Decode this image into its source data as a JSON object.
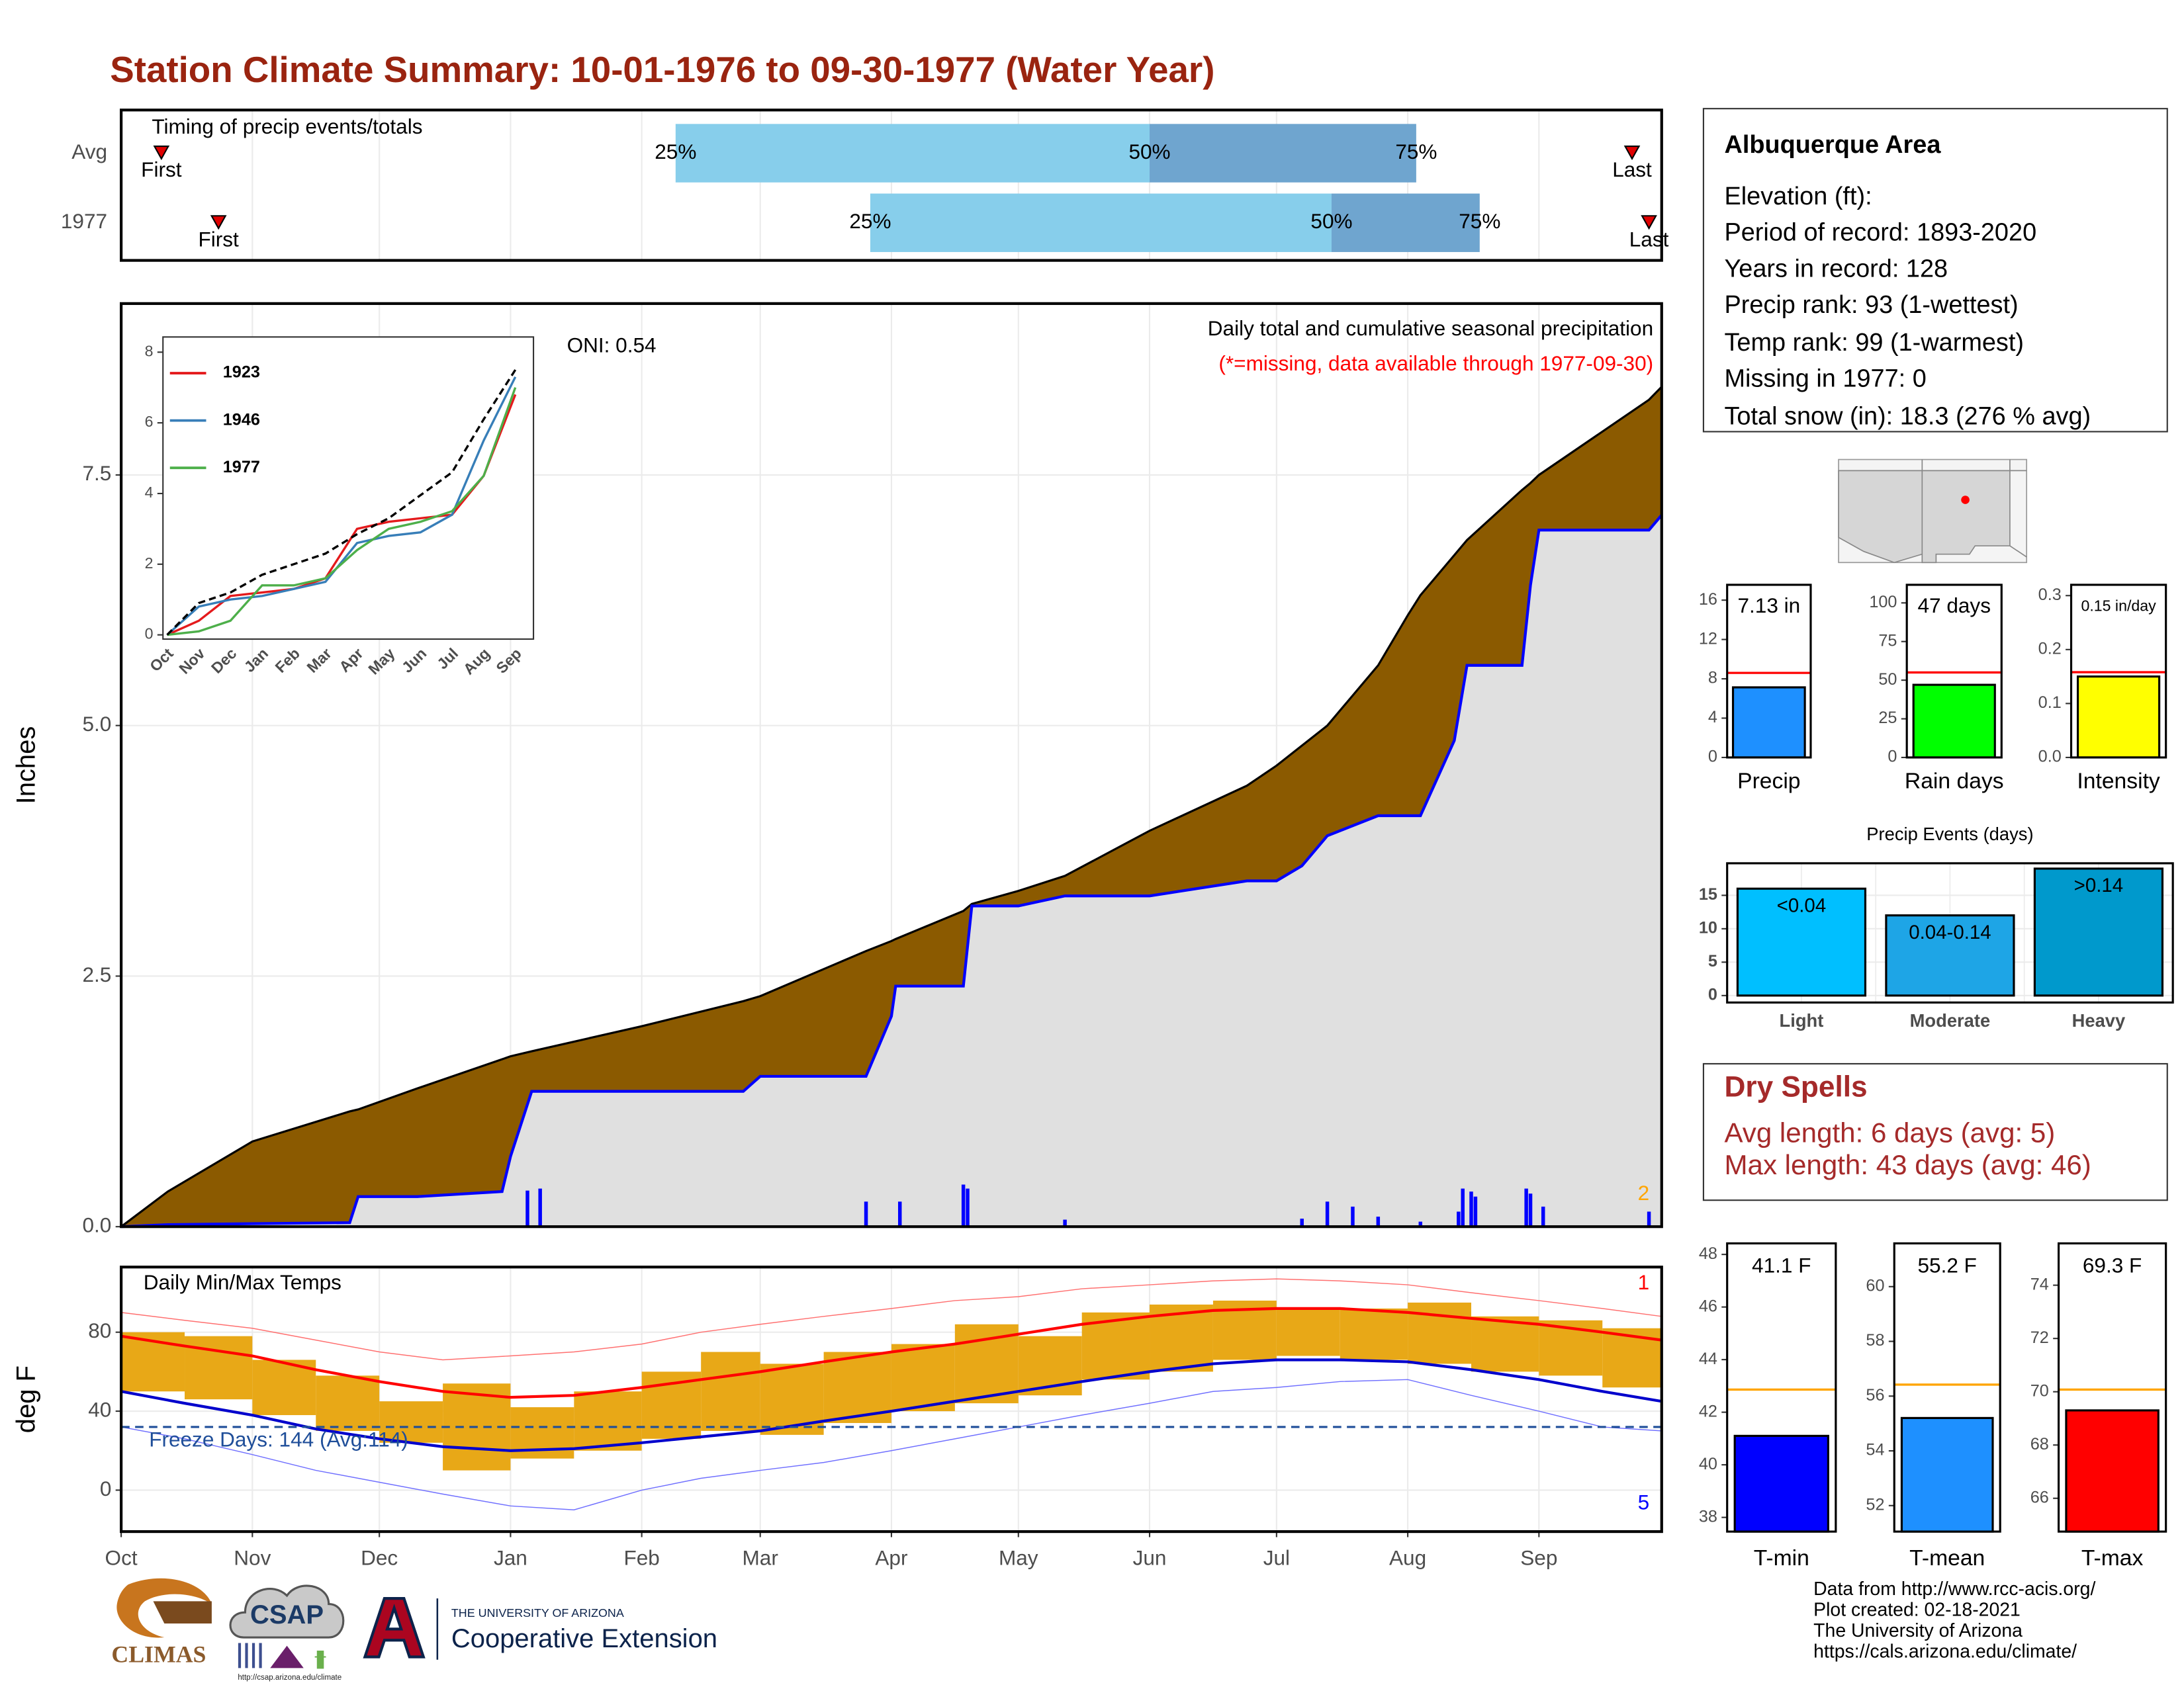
{
  "title": "Station Climate Summary: 10-01-1976 to 09-30-1977 (Water Year)",
  "chart_data": [
    {
      "type": "timing",
      "title": "Timing of precip events/totals",
      "categories": [
        "Avg",
        "1977"
      ],
      "first": [
        9.5,
        23
      ],
      "q25": [
        131,
        177
      ],
      "q50": [
        243,
        286
      ],
      "q75": [
        306,
        321
      ],
      "last": [
        357,
        361
      ],
      "labels": {
        "first": "First",
        "last": "Last",
        "q25": "25%",
        "q50": "50%",
        "q75": "75%"
      },
      "colors": [
        "#87ceeb",
        "#6fa5cf"
      ],
      "xlim": [
        0,
        364
      ]
    },
    {
      "type": "area",
      "ylabel": "Inches",
      "xlim": [
        0,
        364
      ],
      "ylim": [
        0,
        9.21
      ],
      "yticks": [
        {
          "value": 0,
          "label": "0.0"
        },
        2.5,
        {
          "value": 5,
          "label": "5.0"
        },
        7.5
      ],
      "grid": true,
      "x": [
        0,
        11,
        31,
        54,
        56,
        70,
        90,
        92,
        97,
        123,
        147,
        151,
        176,
        182,
        183,
        199,
        201,
        212,
        223,
        243,
        266,
        273,
        279,
        285,
        297,
        304,
        307,
        315,
        318,
        331,
        333,
        335,
        361,
        364
      ],
      "series": [
        {
          "color": "#000000",
          "fill": "#8b5a00",
          "width": 1.5,
          "values": [
            0,
            0.35,
            0.85,
            1.15,
            1.17,
            1.38,
            1.67,
            1.7,
            1.75,
            2.0,
            2.25,
            2.3,
            2.75,
            2.85,
            2.87,
            3.15,
            3.22,
            3.35,
            3.5,
            3.95,
            4.4,
            4.6,
            4.8,
            5.0,
            5.6,
            6.1,
            6.3,
            6.7,
            6.85,
            7.35,
            7.42,
            7.5,
            8.25,
            8.38
          ]
        },
        {
          "color": "#0000ff",
          "fill": "#e0e0e0",
          "width": 2,
          "values": [
            0,
            0.02,
            0.03,
            0.04,
            0.3,
            0.3,
            0.35,
            0.7,
            1.35,
            1.35,
            1.35,
            1.5,
            1.5,
            2.1,
            2.4,
            2.4,
            3.2,
            3.2,
            3.3,
            3.3,
            3.45,
            3.45,
            3.6,
            3.9,
            4.1,
            4.1,
            4.1,
            4.85,
            5.6,
            5.6,
            6.4,
            6.95,
            6.95,
            7.1
          ]
        }
      ],
      "bars": {
        "color": "#0000ff",
        "x": [
          96,
          99,
          176,
          184,
          199,
          200,
          223,
          279,
          285,
          291,
          297,
          307,
          316,
          317,
          319,
          320,
          332,
          333,
          336,
          361
        ],
        "values": [
          0.36,
          0.38,
          0.25,
          0.25,
          0.42,
          0.38,
          0.07,
          0.08,
          0.25,
          0.2,
          0.1,
          0.05,
          0.15,
          0.38,
          0.35,
          0.3,
          0.38,
          0.33,
          0.2,
          0.15
        ]
      },
      "annotations": [
        {
          "text": "Daily total and cumulative seasonal precipitation",
          "color": "#000000"
        },
        {
          "text": "(*=missing, data available through 1977-09-30)",
          "color": "#ff0000"
        },
        {
          "text": "ONI: 0.54",
          "color": "#000000"
        },
        {
          "text": "2",
          "color": "#ffa500"
        }
      ]
    },
    {
      "type": "line",
      "categories": [
        "Oct",
        "Nov",
        "Dec",
        "Jan",
        "Feb",
        "Mar",
        "Apr",
        "May",
        "Jun",
        "Jul",
        "Aug",
        "Sep"
      ],
      "ylim": [
        -0.12,
        8.43
      ],
      "yticks": [
        0,
        2,
        4,
        6,
        8
      ],
      "series": [
        {
          "name": "1923",
          "color": "#e41a1c",
          "values": [
            0,
            0.4,
            1.1,
            1.2,
            1.3,
            1.6,
            3.0,
            3.2,
            3.3,
            3.4,
            4.5,
            6.8
          ]
        },
        {
          "name": "1946",
          "color": "#377eb8",
          "values": [
            0,
            0.8,
            1.0,
            1.1,
            1.3,
            1.5,
            2.6,
            2.8,
            2.9,
            3.4,
            5.5,
            7.3
          ]
        },
        {
          "name": "1977",
          "color": "#4daf4a",
          "values": [
            0,
            0.1,
            0.4,
            1.4,
            1.4,
            1.6,
            2.4,
            3.0,
            3.2,
            3.5,
            4.5,
            7.0
          ]
        },
        {
          "color": "#000000",
          "dash": true,
          "values": [
            0,
            0.9,
            1.2,
            1.7,
            2.0,
            2.3,
            2.85,
            3.3,
            3.95,
            4.6,
            6.1,
            7.5
          ]
        }
      ]
    },
    {
      "type": "temperature",
      "ylabel": "deg F",
      "xlim": [
        0,
        364
      ],
      "ylim": [
        -21,
        113
      ],
      "yticks": [
        0,
        40,
        80
      ],
      "grid": true,
      "xticks": [
        {
          "value": 0,
          "label": "Oct"
        },
        {
          "value": 31,
          "label": "Nov"
        },
        {
          "value": 61,
          "label": "Dec"
        },
        {
          "value": 92,
          "label": "Jan"
        },
        {
          "value": 123,
          "label": "Feb"
        },
        {
          "value": 151,
          "label": "Mar"
        },
        {
          "value": 182,
          "label": "Apr"
        },
        {
          "value": 212,
          "label": "May"
        },
        {
          "value": 243,
          "label": "Jun"
        },
        {
          "value": 273,
          "label": "Jul"
        },
        {
          "value": 304,
          "label": "Aug"
        },
        {
          "value": 335,
          "label": "Sep"
        }
      ],
      "x": [
        0,
        15,
        31,
        46,
        61,
        76,
        92,
        107,
        123,
        137,
        151,
        166,
        182,
        197,
        212,
        227,
        243,
        258,
        273,
        288,
        304,
        319,
        335,
        350,
        364
      ],
      "range_color": "#e8a817",
      "daily_max": [
        80,
        78,
        66,
        58,
        45,
        54,
        42,
        50,
        60,
        70,
        64,
        70,
        74,
        84,
        78,
        90,
        94,
        96,
        92,
        92,
        95,
        88,
        86,
        82,
        74
      ],
      "daily_min": [
        50,
        46,
        38,
        30,
        24,
        10,
        16,
        20,
        26,
        30,
        28,
        34,
        40,
        44,
        48,
        56,
        60,
        66,
        68,
        66,
        64,
        60,
        58,
        52,
        46
      ],
      "series": [
        {
          "color": "#ff7070",
          "width": 0.7,
          "values": [
            90,
            86,
            82,
            76,
            70,
            66,
            68,
            70,
            74,
            80,
            84,
            88,
            92,
            96,
            98,
            102,
            104,
            106,
            107,
            106,
            104,
            100,
            96,
            92,
            88
          ]
        },
        {
          "color": "#ff0000",
          "width": 2,
          "values": [
            78,
            73,
            68,
            61,
            55,
            50,
            47,
            48,
            52,
            56,
            60,
            65,
            70,
            74,
            79,
            84,
            88,
            91,
            92,
            92,
            90,
            87,
            84,
            80,
            76
          ]
        },
        {
          "color": "#0000cc",
          "width": 2,
          "values": [
            50,
            44,
            38,
            31,
            26,
            22,
            20,
            21,
            24,
            27,
            30,
            35,
            40,
            45,
            50,
            55,
            60,
            64,
            66,
            66,
            65,
            61,
            56,
            50,
            45
          ]
        },
        {
          "color": "#7070ff",
          "width": 0.7,
          "values": [
            32,
            26,
            18,
            10,
            4,
            -2,
            -8,
            -10,
            0,
            6,
            10,
            14,
            20,
            26,
            32,
            38,
            44,
            50,
            52,
            55,
            56,
            48,
            40,
            32,
            30
          ]
        }
      ],
      "freeze_value": 32,
      "freeze_color": "#1f4e99",
      "annotations": [
        {
          "text": "Daily Min/Max Temps",
          "color": "#000000"
        },
        {
          "text": "1",
          "color": "#ff0000"
        },
        {
          "text": "5",
          "color": "#0000ff"
        },
        {
          "text": "Freeze Days: 144 (Avg:114)",
          "color": "#1f4e99"
        }
      ]
    },
    {
      "type": "bar",
      "categories": [
        "Precip"
      ],
      "values": [
        7.13
      ],
      "value_labels": [
        "7.13 in"
      ],
      "color": "#1e90ff",
      "average": 8.6,
      "average_color": "#ff0000",
      "ylim": [
        0,
        17.56
      ],
      "yticks": [
        0,
        4,
        8,
        12,
        16
      ]
    },
    {
      "type": "bar",
      "categories": [
        "Rain days"
      ],
      "values": [
        47
      ],
      "value_labels": [
        "47 days"
      ],
      "color": "#00ff00",
      "average": 55,
      "average_color": "#ff0000",
      "ylim": [
        0,
        111.7
      ],
      "yticks": [
        0,
        25,
        50,
        75,
        100
      ]
    },
    {
      "type": "bar",
      "categories": [
        "Intensity"
      ],
      "values": [
        0.15
      ],
      "value_labels": [
        "0.15 in/day"
      ],
      "color": "#ffff00",
      "average": 0.158,
      "average_color": "#ff0000",
      "ylim": [
        0,
        0.32
      ],
      "yticks": [
        {
          "value": 0,
          "label": "0.0"
        },
        0.1,
        0.2,
        0.3
      ]
    },
    {
      "type": "bar",
      "title": "Precip Events (days)",
      "categories": [
        "Light",
        "Moderate",
        "Heavy"
      ],
      "values": [
        16,
        12,
        19
      ],
      "bar_labels": [
        "<0.04",
        "0.04-0.14",
        ">0.14"
      ],
      "colors": [
        "#00bfff",
        "#1ea5e6",
        "#0099cc"
      ],
      "ylim": [
        -1.04,
        19.8
      ],
      "yticks": [
        0,
        5,
        10,
        15
      ],
      "grid": true
    },
    {
      "type": "bar",
      "categories": [
        "T-min"
      ],
      "values": [
        41.1
      ],
      "value_labels": [
        "41.1 F"
      ],
      "color": "#0000ff",
      "average": 42.86,
      "average_color": "#ffa500",
      "ylim": [
        37.46,
        48.42
      ],
      "yticks": [
        38,
        40,
        42,
        44,
        46,
        48
      ]
    },
    {
      "type": "bar",
      "categories": [
        "T-mean"
      ],
      "values": [
        55.2
      ],
      "value_labels": [
        "55.2 F"
      ],
      "color": "#1e90ff",
      "average": 56.42,
      "average_color": "#ffa500",
      "ylim": [
        51.05,
        61.58
      ],
      "yticks": [
        52,
        54,
        56,
        58,
        60
      ]
    },
    {
      "type": "bar",
      "categories": [
        "T-max"
      ],
      "values": [
        69.3
      ],
      "value_labels": [
        "69.3 F"
      ],
      "color": "#ff0000",
      "average": 70.08,
      "average_color": "#ffa500",
      "ylim": [
        64.75,
        75.57
      ],
      "yticks": [
        66,
        68,
        70,
        72,
        74
      ]
    }
  ],
  "info": {
    "title": "Albuquerque Area",
    "lines": [
      "Elevation (ft):",
      "Period of record: 1893-2020",
      "Years in record: 128",
      "Precip rank: 93 (1-wettest)",
      "Temp rank: 99 (1-warmest)",
      "Missing in 1977: 0",
      "Total snow (in): 18.3 (276 % avg)"
    ]
  },
  "dry_spells": {
    "title": "Dry Spells",
    "lines": [
      "Avg length: 6 days (avg: 5)",
      "Max length: 43 days (avg: 46)"
    ]
  },
  "footer": [
    "Data from http://www.rcc-acis.org/",
    "Plot created: 02-18-2021",
    "The University of Arizona",
    "https://cals.arizona.edu/climate/"
  ],
  "logos": {
    "climas": "CLIMAS",
    "csap": "CSAP",
    "csap_url": "http://csap.arizona.edu/climate",
    "university": "THE UNIVERSITY OF ARIZONA",
    "extension": "Cooperative Extension"
  }
}
